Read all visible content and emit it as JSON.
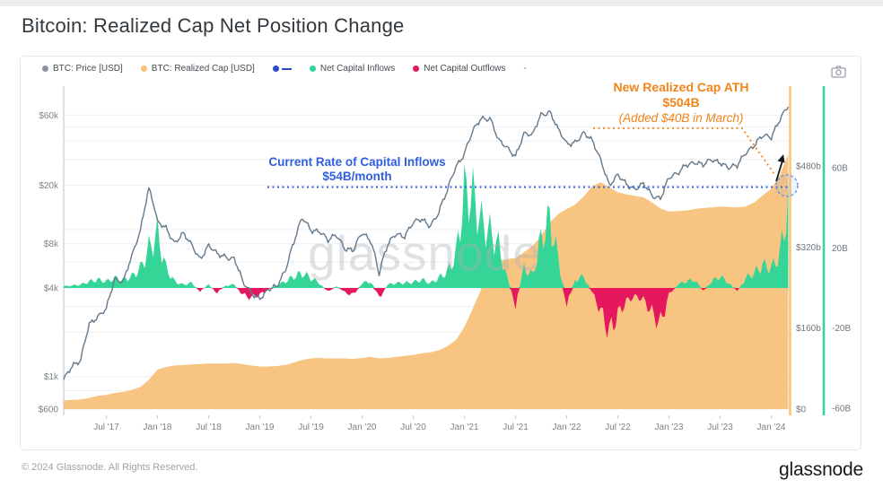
{
  "page": {
    "title": "Bitcoin: Realized Cap Net Position Change"
  },
  "legend": {
    "items": [
      {
        "label": "BTC: Price [USD]",
        "color": "#8b949e",
        "marker": "dot"
      },
      {
        "label": "BTC: Realized Cap [USD]",
        "color": "#f9c377",
        "marker": "dot"
      },
      {
        "label": "",
        "color": "#2b4bc8",
        "marker": "dot-dash"
      },
      {
        "label": "Net Capital Inflows",
        "color": "#35d598",
        "marker": "dot"
      },
      {
        "label": "Net Capital Outflows",
        "color": "#e5175e",
        "marker": "dot"
      },
      {
        "label": "-",
        "color": "#6b7280",
        "marker": "text"
      }
    ]
  },
  "toolbar": {
    "camera_icon": "camera-icon"
  },
  "annotations": {
    "realized_ath": {
      "line1": "New Realized Cap ATH",
      "line2": "$504B",
      "line3": "(Added $40B in March)",
      "color": "#f28418"
    },
    "inflow_rate": {
      "line1": "Current Rate of Capital Inflows",
      "line2": "$54B/month",
      "color": "#2f5fdf"
    }
  },
  "footer": {
    "copyright": "© 2024 Glassnode. All Rights Reserved.",
    "brand": "glassnode"
  },
  "chart_data": {
    "type": "line",
    "title": "Bitcoin: Realized Cap Net Position Change",
    "watermark": "glassnode",
    "x_start_month": "Feb 2017",
    "x_end_month": "Mar 2024",
    "x_ticks": [
      {
        "label": "Jul '17",
        "m": 5
      },
      {
        "label": "Jan '18",
        "m": 11
      },
      {
        "label": "Jul '18",
        "m": 17
      },
      {
        "label": "Jan '19",
        "m": 23
      },
      {
        "label": "Jul '19",
        "m": 29
      },
      {
        "label": "Jan '20",
        "m": 35
      },
      {
        "label": "Jul '20",
        "m": 41
      },
      {
        "label": "Jan '21",
        "m": 47
      },
      {
        "label": "Jul '21",
        "m": 53
      },
      {
        "label": "Jan '22",
        "m": 59
      },
      {
        "label": "Jul '22",
        "m": 65
      },
      {
        "label": "Jan '23",
        "m": 71
      },
      {
        "label": "Jul '23",
        "m": 77
      },
      {
        "label": "Jan '24",
        "m": 83
      }
    ],
    "price_axis": {
      "scale": "log",
      "unit": "USD",
      "range": [
        600,
        72000
      ],
      "ticks": [
        {
          "label": "$60k",
          "v": 60000
        },
        {
          "label": "$20k",
          "v": 20000
        },
        {
          "label": "$8k",
          "v": 8000
        },
        {
          "label": "$4k",
          "v": 4000
        },
        {
          "label": "$1k",
          "v": 1000
        },
        {
          "label": "$600",
          "v": 600
        }
      ],
      "gridline_values": [
        600,
        800,
        1000,
        2000,
        3000,
        4000,
        6000,
        8000,
        10000,
        20000,
        30000,
        40000,
        50000,
        60000
      ]
    },
    "cap_axis": {
      "scale": "linear",
      "unit": "USD billions",
      "range": [
        0,
        520
      ],
      "axis_color": "#f9c377",
      "ticks": [
        {
          "label": "$480b",
          "v": 480
        },
        {
          "label": "$320b",
          "v": 320
        },
        {
          "label": "$160b",
          "v": 160
        },
        {
          "label": "$0",
          "v": 0
        }
      ]
    },
    "flow_axis": {
      "scale": "linear",
      "unit": "USD billions / month",
      "range": [
        -65,
        65
      ],
      "axis_color": "#35d598",
      "ticks": [
        {
          "label": "60B",
          "v": 60
        },
        {
          "label": "20B",
          "v": 20
        },
        {
          "label": "-20B",
          "v": -20
        },
        {
          "label": "-60B",
          "v": -60
        }
      ]
    },
    "series": [
      {
        "name": "BTC: Price [USD]",
        "type": "line",
        "axis": "price",
        "color": "#64798b",
        "values": [
          950,
          1150,
          1300,
          2300,
          2480,
          2870,
          4700,
          4350,
          6450,
          9900,
          19000,
          11000,
          10300,
          8200,
          9250,
          7800,
          6400,
          7750,
          6700,
          6600,
          6400,
          4300,
          3700,
          3460,
          3850,
          4050,
          5350,
          8200,
          11800,
          10000,
          9900,
          8300,
          9150,
          7550,
          7200,
          9350,
          8550,
          5000,
          7700,
          9450,
          9140,
          11000,
          11650,
          10780,
          13000,
          18000,
          27000,
          33000,
          46000,
          57000,
          58000,
          40000,
          35500,
          32000,
          45000,
          43000,
          61000,
          64000,
          47000,
          38000,
          40000,
          45000,
          39500,
          30000,
          20000,
          23000,
          20500,
          19200,
          20200,
          16800,
          16600,
          22500,
          23500,
          28000,
          29000,
          27000,
          30000,
          29200,
          26000,
          26900,
          34000,
          37500,
          42800,
          42800,
          57000,
          68500
        ]
      },
      {
        "name": "BTC: Realized Cap [USD]",
        "type": "area",
        "axis": "cap",
        "color": "#f8c27c",
        "values": [
          17,
          18,
          19,
          22,
          26,
          28,
          32,
          34,
          38,
          44,
          58,
          78,
          83,
          86,
          87,
          88,
          89,
          90,
          90,
          90,
          91,
          89,
          86,
          84,
          84,
          85,
          87,
          92,
          97,
          100,
          101,
          100,
          100,
          100,
          99,
          101,
          103,
          100,
          101,
          103,
          105,
          107,
          110,
          112,
          116,
          124,
          136,
          162,
          199,
          238,
          270,
          292,
          296,
          298,
          310,
          322,
          342,
          368,
          385,
          395,
          404,
          420,
          440,
          448,
          438,
          428,
          424,
          421,
          418,
          408,
          396,
          390,
          391,
          392,
          395,
          397,
          398,
          400,
          399,
          398,
          400,
          408,
          422,
          435,
          462,
          504
        ]
      },
      {
        "name": "Realized Cap Net Position Change",
        "type": "area-diverging",
        "axis": "flow",
        "pos_name": "Net Capital Inflows",
        "pos_color": "#35d598",
        "neg_name": "Net Capital Outflows",
        "neg_color": "#e5175e",
        "values": [
          1,
          1.5,
          2,
          4,
          5,
          4,
          6,
          5,
          7,
          12,
          24,
          33,
          12,
          4,
          2,
          3,
          -2,
          2,
          -3,
          1.5,
          2,
          -4,
          -6,
          -4,
          -1,
          1.5,
          4,
          7,
          9,
          6,
          3,
          -2.5,
          1.5,
          -3,
          -4,
          3,
          4,
          -6,
          2,
          3,
          3,
          3.5,
          5,
          3,
          6,
          10,
          20,
          58,
          56,
          40,
          34,
          26,
          6,
          -10,
          12,
          8,
          30,
          42,
          18,
          -11,
          5,
          7,
          -3,
          -14,
          -27,
          -16,
          -8,
          -5,
          -7,
          -15,
          -22,
          -4,
          2,
          4,
          5,
          -2,
          4,
          7,
          3,
          -2,
          6,
          9,
          14,
          12,
          20,
          52
        ]
      }
    ],
    "callouts": {
      "realized_cap_ath_billion": 504,
      "added_in_march_billion": 40,
      "inflow_rate_billion_per_month": 54
    }
  }
}
